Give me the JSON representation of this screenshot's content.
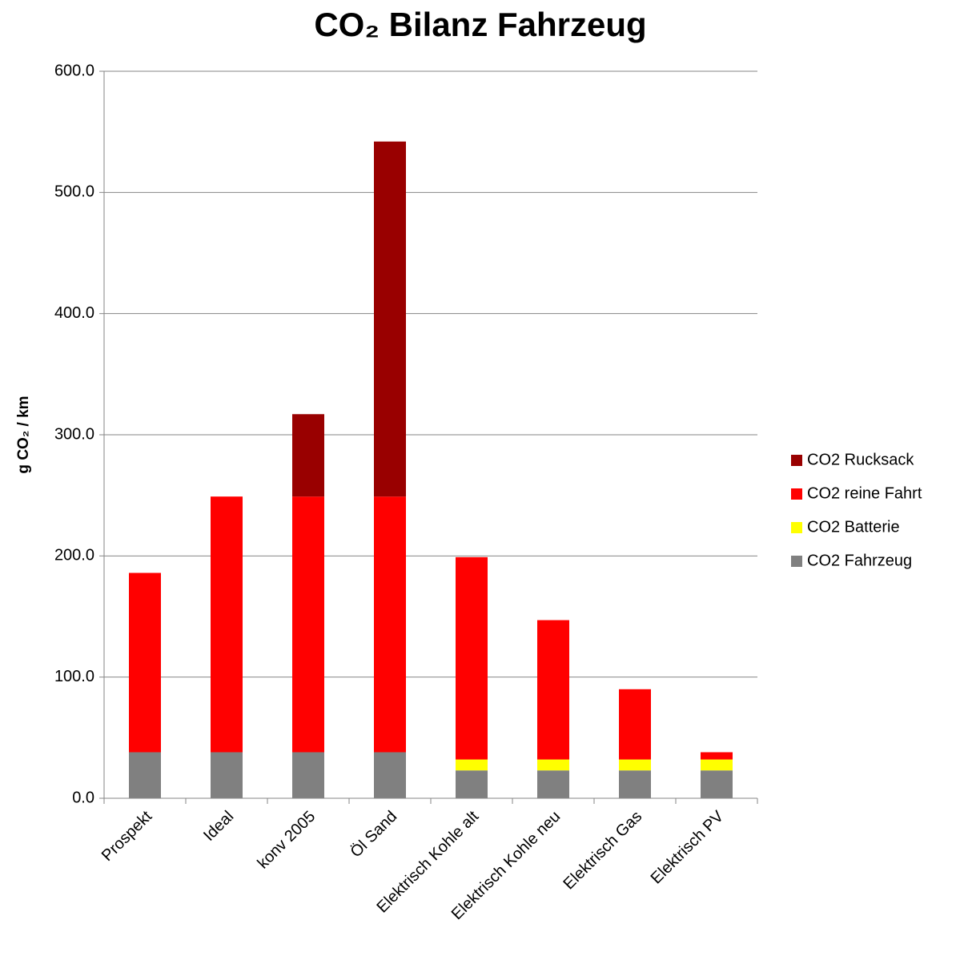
{
  "chart_data": {
    "type": "stacked_bar",
    "title": "CO₂ Bilanz Fahrzeug",
    "y_label": "g CO₂ / km",
    "categories": [
      "Prospekt",
      "Ideal",
      "konv 2005",
      "Öl Sand",
      "Elektrisch Kohle alt",
      "Elektrisch Kohle neu",
      "Elektrisch Gas",
      "Elektrisch PV"
    ],
    "series": [
      {
        "name": "CO2 Fahrzeug",
        "color": "#808080",
        "values": [
          38,
          38,
          38,
          38,
          23,
          23,
          23,
          23
        ]
      },
      {
        "name": "CO2 Batterie",
        "color": "#ffff00",
        "values": [
          0,
          0,
          0,
          0,
          9,
          9,
          9,
          9
        ]
      },
      {
        "name": "CO2 reine Fahrt",
        "color": "#ff0000",
        "values": [
          148,
          211,
          211,
          211,
          167,
          115,
          58,
          6
        ]
      },
      {
        "name": "CO2 Rucksack",
        "color": "#990000",
        "values": [
          0,
          0,
          68,
          293,
          0,
          0,
          0,
          0
        ]
      }
    ],
    "ylim": [
      0,
      600
    ],
    "yticks": [
      {
        "value": 0,
        "label": "0.0"
      },
      {
        "value": 100,
        "label": "100.0"
      },
      {
        "value": 200,
        "label": "200.0"
      },
      {
        "value": 300,
        "label": "300.0"
      },
      {
        "value": 400,
        "label": "400.0"
      },
      {
        "value": 500,
        "label": "500.0"
      },
      {
        "value": 600,
        "label": "600.0"
      }
    ],
    "grid": true,
    "legend": "right"
  }
}
